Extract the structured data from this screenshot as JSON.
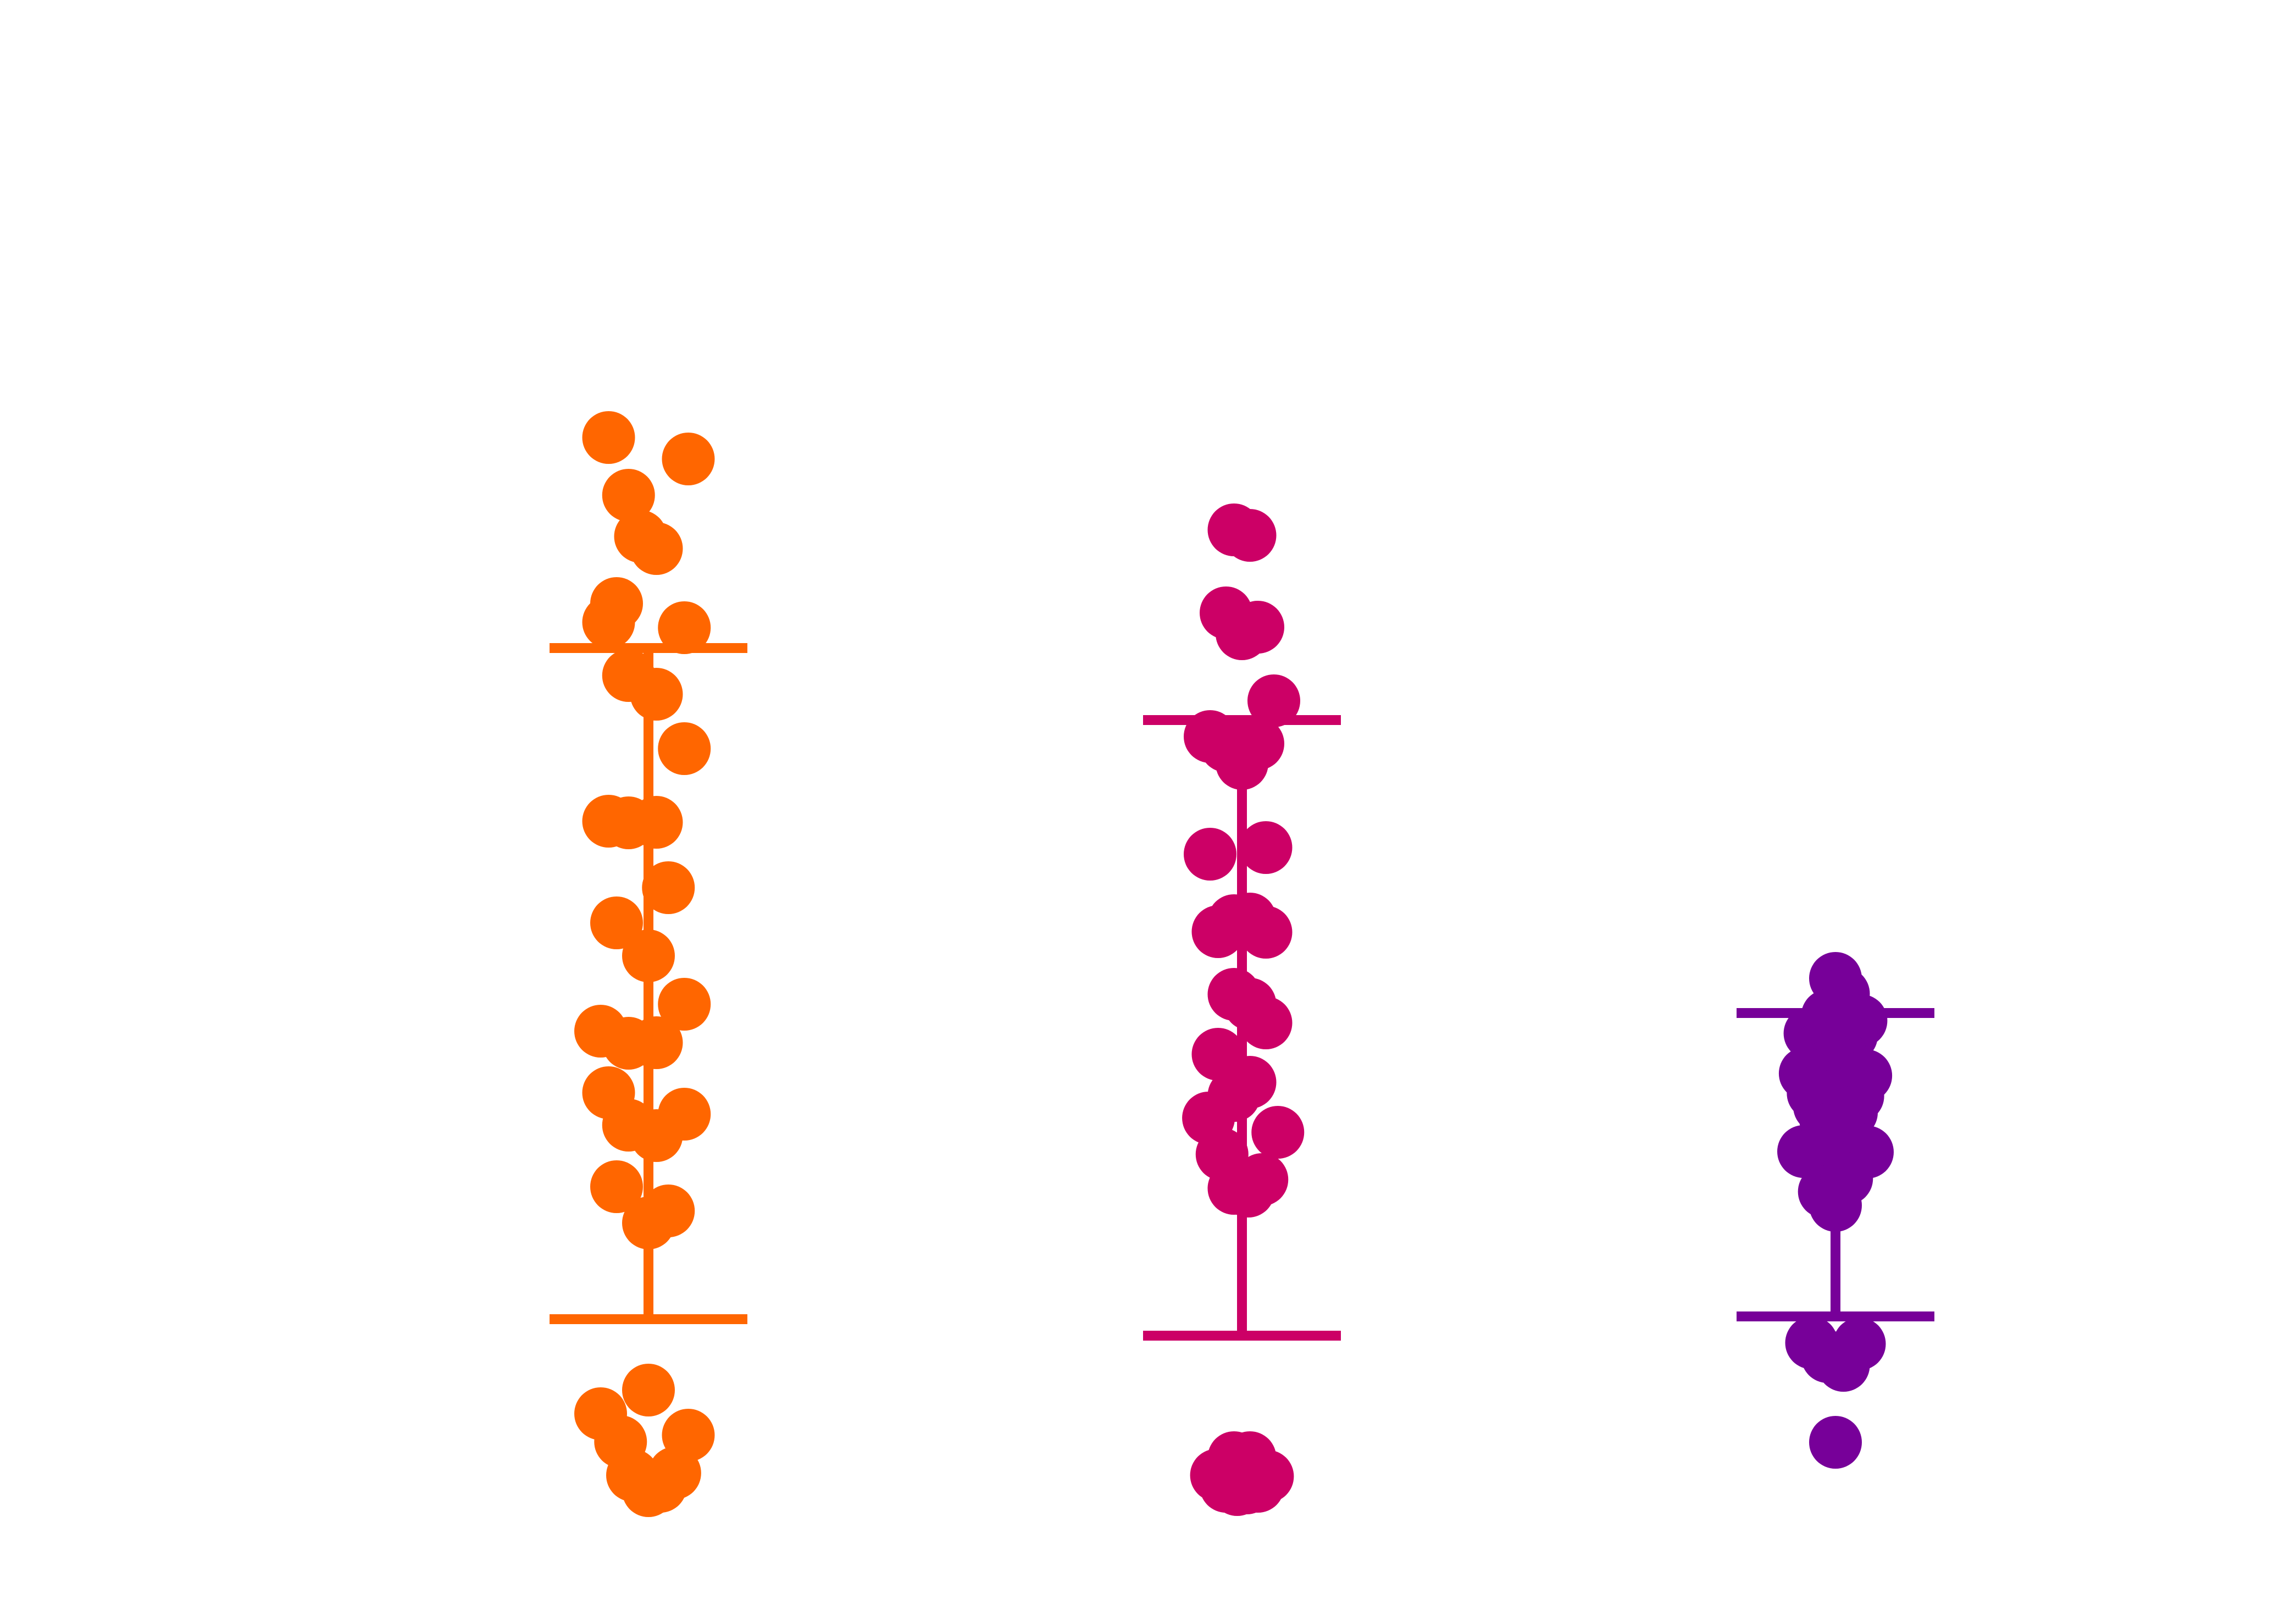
{
  "chart_data": {
    "type": "scatter",
    "subtype": "swarm-with-error-bars",
    "title": "",
    "xlabel": "",
    "ylabel": "",
    "axes_visible": false,
    "grid": false,
    "legend": "none",
    "ylim": [
      0,
      2920
    ],
    "y_direction": "up",
    "categories": [
      "",
      "",
      ""
    ],
    "groups": [
      {
        "color": "#ff6600",
        "error_bar": {
          "low": 520,
          "high": 1741
        },
        "points": [
          [
            -0.5,
            2124
          ],
          [
            -0.25,
            2019
          ],
          [
            0.1,
            1922
          ],
          [
            -0.1,
            1944
          ],
          [
            0.5,
            2085
          ],
          [
            -0.4,
            1822
          ],
          [
            -0.5,
            1788
          ],
          [
            0.45,
            1778
          ],
          [
            -0.25,
            1691
          ],
          [
            0.1,
            1657
          ],
          [
            0.45,
            1558
          ],
          [
            -0.5,
            1426
          ],
          [
            -0.25,
            1423
          ],
          [
            0.1,
            1424
          ],
          [
            0.25,
            1305
          ],
          [
            -0.4,
            1241
          ],
          [
            0.0,
            1181
          ],
          [
            0.45,
            1093
          ],
          [
            -0.6,
            1044
          ],
          [
            -0.25,
            1022
          ],
          [
            0.1,
            1023
          ],
          [
            -0.5,
            932
          ],
          [
            0.45,
            893
          ],
          [
            -0.25,
            873
          ],
          [
            0.1,
            854
          ],
          [
            -0.4,
            761
          ],
          [
            0.25,
            717
          ],
          [
            0.0,
            695
          ],
          [
            0.0,
            391
          ],
          [
            -0.6,
            348
          ],
          [
            0.5,
            309
          ],
          [
            -0.35,
            297
          ],
          [
            0.33,
            240
          ],
          [
            -0.2,
            236
          ],
          [
            0.15,
            216
          ],
          [
            0.0,
            208
          ]
        ]
      },
      {
        "color": "#cc0066",
        "error_bar": {
          "low": 490,
          "high": 1610
        },
        "points": [
          [
            -0.1,
            1956
          ],
          [
            0.1,
            1946
          ],
          [
            -0.2,
            1805
          ],
          [
            0.0,
            1767
          ],
          [
            0.2,
            1779
          ],
          [
            0.4,
            1645
          ],
          [
            -0.4,
            1580
          ],
          [
            -0.2,
            1563
          ],
          [
            0.2,
            1567
          ],
          [
            0.0,
            1531
          ],
          [
            0.3,
            1378
          ],
          [
            -0.4,
            1366
          ],
          [
            -0.1,
            1245
          ],
          [
            0.1,
            1248
          ],
          [
            -0.3,
            1225
          ],
          [
            0.3,
            1224
          ],
          [
            -0.1,
            1111
          ],
          [
            0.1,
            1093
          ],
          [
            0.3,
            1059
          ],
          [
            -0.3,
            1002
          ],
          [
            0.1,
            951
          ],
          [
            -0.1,
            927
          ],
          [
            -0.42,
            886
          ],
          [
            0.45,
            860
          ],
          [
            -0.25,
            820
          ],
          [
            -0.1,
            758
          ],
          [
            0.08,
            753
          ],
          [
            0.25,
            774
          ],
          [
            -0.1,
            268
          ],
          [
            0.1,
            268
          ],
          [
            -0.32,
            236
          ],
          [
            0.32,
            234
          ],
          [
            -0.2,
            216
          ],
          [
            -0.06,
            210
          ],
          [
            0.06,
            213
          ],
          [
            0.2,
            216
          ]
        ]
      },
      {
        "color": "#770099",
        "error_bar": {
          "low": 525,
          "high": 1077
        },
        "points": [
          [
            0.0,
            1140
          ],
          [
            0.1,
            1112
          ],
          [
            -0.1,
            1072
          ],
          [
            0.32,
            1063
          ],
          [
            -0.32,
            1040
          ],
          [
            0.2,
            1036
          ],
          [
            -0.2,
            1013
          ],
          [
            0.06,
            1002
          ],
          [
            -0.06,
            995
          ],
          [
            0.1,
            978
          ],
          [
            -0.1,
            980
          ],
          [
            -0.38,
            967
          ],
          [
            0.38,
            963
          ],
          [
            -0.28,
            931
          ],
          [
            0.28,
            926
          ],
          [
            -0.2,
            907
          ],
          [
            0.2,
            896
          ],
          [
            -0.12,
            880
          ],
          [
            0.12,
            872
          ],
          [
            -0.04,
            868
          ],
          [
            0.04,
            865
          ],
          [
            -0.4,
            825
          ],
          [
            -0.26,
            822
          ],
          [
            0.26,
            818
          ],
          [
            0.4,
            824
          ],
          [
            -0.14,
            752
          ],
          [
            0.14,
            776
          ],
          [
            0.0,
            727
          ],
          [
            -0.3,
            477
          ],
          [
            0.3,
            475
          ],
          [
            -0.1,
            452
          ],
          [
            0.1,
            436
          ],
          [
            0.0,
            296
          ]
        ]
      }
    ]
  }
}
